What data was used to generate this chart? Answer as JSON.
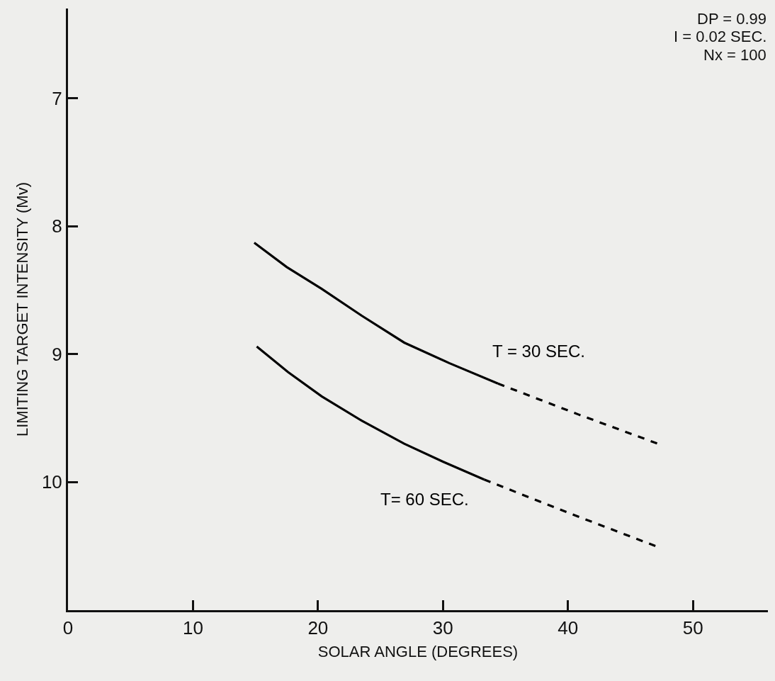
{
  "chart_data": {
    "type": "line",
    "xlabel": "SOLAR ANGLE (DEGREES)",
    "ylabel": "LIMITING TARGET INTENSITY (Mv)",
    "xlim": [
      0,
      56
    ],
    "xticks": [
      0,
      10,
      20,
      30,
      40,
      50
    ],
    "ylim": [
      11,
      6.3
    ],
    "yticks": [
      7,
      8,
      9,
      10
    ],
    "grid": false,
    "legend": false,
    "marker": "none",
    "series": [
      {
        "name": "T = 30 SEC.",
        "color": "#000000",
        "line_style": "solid",
        "x": [
          14.9,
          17.5,
          20.3,
          23.5,
          26.9,
          30.5,
          34.4
        ],
        "values": [
          8.13,
          8.32,
          8.49,
          8.7,
          8.91,
          9.07,
          9.23
        ]
      },
      {
        "color": "#000000",
        "line_style": "dashed",
        "x": [
          34.4,
          40.8,
          47.2
        ],
        "values": [
          9.23,
          9.47,
          9.7
        ]
      },
      {
        "name": "T= 60 SEC.",
        "color": "#000000",
        "line_style": "solid",
        "x": [
          15.1,
          17.6,
          20.3,
          23.5,
          26.9,
          30.0,
          33.3
        ],
        "values": [
          8.94,
          9.14,
          9.33,
          9.52,
          9.7,
          9.84,
          9.98
        ]
      },
      {
        "color": "#000000",
        "line_style": "dashed",
        "x": [
          33.3,
          40.3,
          47.3
        ],
        "values": [
          9.98,
          10.25,
          10.51
        ]
      }
    ],
    "annotations": [
      "DP = 0.99",
      "I = 0.02 SEC.",
      "Nx = 100"
    ]
  }
}
